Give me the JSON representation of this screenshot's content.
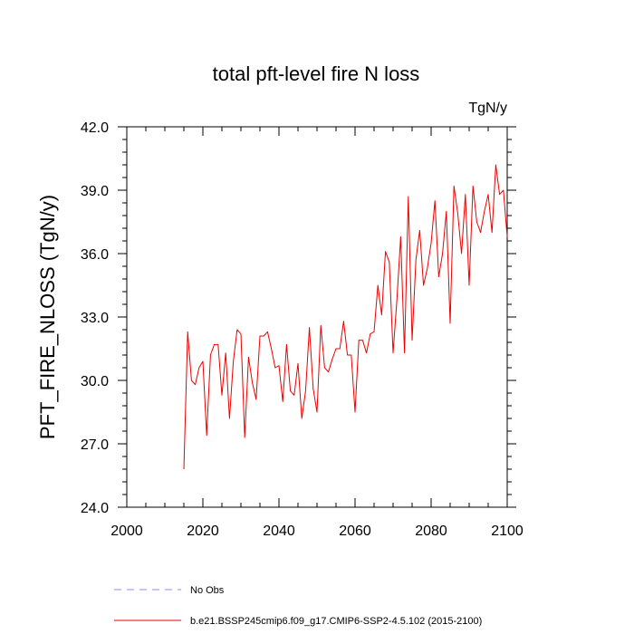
{
  "chart_data": {
    "type": "line",
    "title": "total pft-level fire N loss",
    "units": "TgN/y",
    "xlabel": "",
    "ylabel": "PFT_FIRE_NLOSS  (TgN/y)",
    "xlim": [
      2000,
      2100
    ],
    "ylim": [
      24.0,
      42.0
    ],
    "xticks": [
      2000,
      2020,
      2040,
      2060,
      2080,
      2100
    ],
    "xtick_labels": [
      "2000",
      "2020",
      "2040",
      "2060",
      "2080",
      "2100"
    ],
    "yticks": [
      24.0,
      27.0,
      30.0,
      33.0,
      36.0,
      39.0,
      42.0
    ],
    "ytick_labels": [
      "24.0",
      "27.0",
      "30.0",
      "33.0",
      "36.0",
      "39.0",
      "42.0"
    ],
    "grid": false,
    "legend_position": "bottom",
    "series": [
      {
        "name": "No Obs",
        "style": "dashed",
        "color": "#8888ff",
        "x": [],
        "values": []
      },
      {
        "name": "b.e21.BSSP245cmip6.f09_g17.CMIP6-SSP2-4.5.102 (2015-2100)",
        "style": "solid",
        "color": "#ee0000",
        "x": [
          2015,
          2016,
          2017,
          2018,
          2019,
          2020,
          2021,
          2022,
          2023,
          2024,
          2025,
          2026,
          2027,
          2028,
          2029,
          2030,
          2031,
          2032,
          2033,
          2034,
          2035,
          2036,
          2037,
          2038,
          2039,
          2040,
          2041,
          2042,
          2043,
          2044,
          2045,
          2046,
          2047,
          2048,
          2049,
          2050,
          2051,
          2052,
          2053,
          2054,
          2055,
          2056,
          2057,
          2058,
          2059,
          2060,
          2061,
          2062,
          2063,
          2064,
          2065,
          2066,
          2067,
          2068,
          2069,
          2070,
          2071,
          2072,
          2073,
          2074,
          2075,
          2076,
          2077,
          2078,
          2079,
          2080,
          2081,
          2082,
          2083,
          2084,
          2085,
          2086,
          2087,
          2088,
          2089,
          2090,
          2091,
          2092,
          2093,
          2094,
          2095,
          2096,
          2097,
          2098,
          2099,
          2100
        ],
        "values": [
          25.8,
          32.3,
          30.0,
          29.8,
          30.6,
          30.9,
          27.4,
          31.2,
          31.7,
          31.7,
          29.3,
          31.3,
          28.2,
          30.9,
          32.4,
          32.2,
          27.3,
          31.1,
          29.9,
          29.1,
          32.1,
          32.1,
          32.3,
          31.5,
          30.6,
          30.7,
          29.0,
          31.7,
          29.5,
          29.3,
          30.8,
          28.2,
          29.5,
          32.5,
          29.6,
          28.5,
          32.6,
          30.6,
          30.4,
          31.0,
          31.5,
          31.5,
          32.8,
          31.2,
          31.2,
          28.5,
          31.9,
          31.9,
          31.3,
          32.2,
          32.3,
          34.5,
          33.1,
          36.1,
          35.6,
          31.3,
          33.8,
          36.8,
          31.3,
          38.7,
          31.9,
          35.7,
          37.1,
          34.5,
          35.3,
          36.5,
          38.5,
          34.9,
          36.0,
          38.0,
          32.7,
          39.2,
          37.9,
          36.0,
          38.8,
          34.5,
          39.2,
          37.5,
          37.0,
          38.0,
          38.8,
          37.0,
          40.2,
          38.8,
          39.0,
          36.8
        ]
      }
    ]
  }
}
